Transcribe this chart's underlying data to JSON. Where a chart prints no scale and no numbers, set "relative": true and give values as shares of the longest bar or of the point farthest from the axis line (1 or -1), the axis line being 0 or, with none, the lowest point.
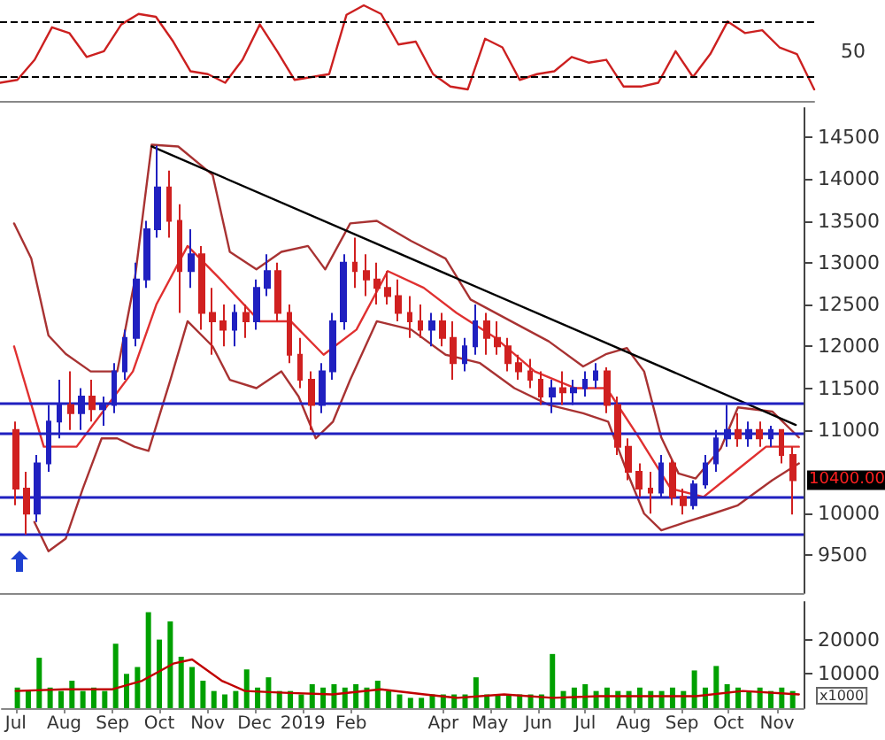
{
  "chart_data": [
    {
      "type": "line",
      "relative": true,
      "color": "#cc2020",
      "tick_labels": false,
      "categories": [
        null,
        null,
        null,
        null,
        null,
        null,
        null,
        null,
        null,
        null,
        null,
        null,
        null,
        null,
        null,
        null,
        null,
        null,
        null,
        null,
        null,
        null,
        null,
        null,
        null,
        null,
        null,
        null,
        null,
        null,
        null,
        null,
        null,
        null,
        null,
        null,
        null,
        null,
        null,
        null,
        null,
        null,
        null,
        null,
        null,
        null,
        null,
        null
      ],
      "values": [
        0.19,
        0.22,
        0.43,
        0.77,
        0.71,
        0.46,
        0.52,
        0.8,
        0.91,
        0.88,
        0.62,
        0.31,
        0.28,
        0.19,
        0.43,
        0.8,
        0.52,
        0.22,
        0.25,
        0.28,
        0.9,
        1.0,
        0.91,
        0.59,
        0.62,
        0.28,
        0.15,
        0.12,
        0.65,
        0.56,
        0.22,
        0.28,
        0.31,
        0.46,
        0.4,
        0.43,
        0.15,
        0.15,
        0.19,
        0.52,
        0.25,
        0.49,
        0.83,
        0.71,
        0.74,
        0.56,
        0.49,
        0.12
      ],
      "ref_lines": [
        {
          "axis": "y",
          "value": 0.83,
          "color": "#000000",
          "line_style": "dashed"
        },
        {
          "axis": "y",
          "value": 0.26,
          "color": "#000000",
          "line_style": "dashed"
        }
      ],
      "annotations": [
        "50"
      ]
    },
    {
      "type": "candlestick",
      "xlim": [
        "2018-06-22",
        "2019-11-18"
      ],
      "ylim": [
        9050,
        14850
      ],
      "yticks": [
        9500,
        10000,
        11000,
        11500,
        12000,
        12500,
        13000,
        13500,
        14000,
        14500
      ],
      "tick_labels": "y",
      "x": [
        "2018-07-02",
        "2018-07-09",
        "2018-07-16",
        "2018-07-23",
        "2018-07-30",
        "2018-08-06",
        "2018-08-13",
        "2018-08-20",
        "2018-08-27",
        "2018-09-03",
        "2018-09-10",
        "2018-09-17",
        "2018-09-24",
        "2018-10-01",
        "2018-10-08",
        "2018-10-15",
        "2018-10-22",
        "2018-10-29",
        "2018-11-05",
        "2018-11-12",
        "2018-11-19",
        "2018-11-26",
        "2018-12-03",
        "2018-12-10",
        "2018-12-17",
        "2018-12-24",
        "2018-12-31",
        "2019-01-07",
        "2019-01-14",
        "2019-01-21",
        "2019-01-28",
        "2019-02-04",
        "2019-02-11",
        "2019-02-18",
        "2019-02-25",
        "2019-03-04",
        "2019-03-11",
        "2019-03-18",
        "2019-03-25",
        "2019-04-01",
        "2019-04-08",
        "2019-04-15",
        "2019-04-22",
        "2019-04-29",
        "2019-05-06",
        "2019-05-13",
        "2019-05-20",
        "2019-05-27",
        "2019-06-03",
        "2019-06-10",
        "2019-06-17",
        "2019-06-24",
        "2019-07-01",
        "2019-07-08",
        "2019-07-15",
        "2019-07-22",
        "2019-07-29",
        "2019-08-05",
        "2019-08-12",
        "2019-08-19",
        "2019-08-26",
        "2019-09-02",
        "2019-09-09",
        "2019-09-16",
        "2019-09-23",
        "2019-09-30",
        "2019-10-07",
        "2019-10-14",
        "2019-10-21",
        "2019-10-28",
        "2019-11-04",
        "2019-11-11"
      ],
      "ohlc": [
        [
          11000,
          11100,
          10100,
          10300
        ],
        [
          10300,
          10500,
          9750,
          10000
        ],
        [
          10000,
          10700,
          9900,
          10600
        ],
        [
          10600,
          11300,
          10500,
          11100
        ],
        [
          11100,
          11600,
          10900,
          11300
        ],
        [
          11300,
          11700,
          11000,
          11200
        ],
        [
          11200,
          11500,
          11000,
          11400
        ],
        [
          11400,
          11600,
          11100,
          11250
        ],
        [
          11250,
          11400,
          11050,
          11300
        ],
        [
          11300,
          11800,
          11200,
          11700
        ],
        [
          11700,
          12200,
          11600,
          12100
        ],
        [
          12100,
          13000,
          12000,
          12800
        ],
        [
          12800,
          13500,
          12700,
          13400
        ],
        [
          13400,
          14400,
          13300,
          13900
        ],
        [
          13900,
          14100,
          13300,
          13500
        ],
        [
          13500,
          13700,
          12400,
          12900
        ],
        [
          12900,
          13400,
          12700,
          13100
        ],
        [
          13100,
          13200,
          12200,
          12400
        ],
        [
          12400,
          12700,
          11900,
          12300
        ],
        [
          12300,
          12500,
          12000,
          12200
        ],
        [
          12200,
          12500,
          12000,
          12400
        ],
        [
          12400,
          12500,
          12100,
          12300
        ],
        [
          12300,
          12800,
          12200,
          12700
        ],
        [
          12700,
          13100,
          12600,
          12900
        ],
        [
          12900,
          13000,
          12300,
          12400
        ],
        [
          12400,
          12500,
          11800,
          11900
        ],
        [
          11900,
          12100,
          11500,
          11600
        ],
        [
          11600,
          11700,
          11000,
          11300
        ],
        [
          11300,
          11800,
          11200,
          11700
        ],
        [
          11700,
          12400,
          11600,
          12300
        ],
        [
          12300,
          13100,
          12200,
          13000
        ],
        [
          13000,
          13300,
          12700,
          12900
        ],
        [
          12900,
          13100,
          12600,
          12800
        ],
        [
          12800,
          13000,
          12500,
          12700
        ],
        [
          12700,
          12900,
          12500,
          12600
        ],
        [
          12600,
          12800,
          12300,
          12400
        ],
        [
          12400,
          12600,
          12100,
          12300
        ],
        [
          12300,
          12500,
          12100,
          12200
        ],
        [
          12200,
          12400,
          12000,
          12300
        ],
        [
          12300,
          12400,
          12000,
          12100
        ],
        [
          12100,
          12300,
          11600,
          11800
        ],
        [
          11800,
          12100,
          11700,
          12000
        ],
        [
          12000,
          12500,
          11900,
          12300
        ],
        [
          12300,
          12400,
          11900,
          12100
        ],
        [
          12100,
          12300,
          11900,
          12000
        ],
        [
          12000,
          12100,
          11700,
          11800
        ],
        [
          11800,
          11900,
          11600,
          11700
        ],
        [
          11700,
          11850,
          11500,
          11600
        ],
        [
          11600,
          11700,
          11300,
          11400
        ],
        [
          11400,
          11600,
          11200,
          11500
        ],
        [
          11500,
          11700,
          11300,
          11450
        ],
        [
          11450,
          11600,
          11300,
          11500
        ],
        [
          11500,
          11700,
          11400,
          11600
        ],
        [
          11600,
          11800,
          11500,
          11700
        ],
        [
          11700,
          11750,
          11200,
          11300
        ],
        [
          11300,
          11400,
          10700,
          10800
        ],
        [
          10800,
          10900,
          10400,
          10500
        ],
        [
          10500,
          10600,
          10200,
          10300
        ],
        [
          10300,
          10500,
          10000,
          10250
        ],
        [
          10250,
          10700,
          10200,
          10600
        ],
        [
          10600,
          10650,
          10100,
          10200
        ],
        [
          10200,
          10300,
          9990,
          10100
        ],
        [
          10100,
          10400,
          10050,
          10350
        ],
        [
          10350,
          10700,
          10300,
          10600
        ],
        [
          10600,
          11000,
          10500,
          10900
        ],
        [
          10900,
          11300,
          10800,
          11000
        ],
        [
          11000,
          11200,
          10800,
          10900
        ],
        [
          10900,
          11100,
          10800,
          11000
        ],
        [
          11000,
          11100,
          10800,
          10900
        ],
        [
          10900,
          11050,
          10800,
          11000
        ],
        [
          11000,
          11000,
          10600,
          10700
        ],
        [
          10700,
          10800,
          9990,
          10400
        ]
      ],
      "series": [
        {
          "type": "line",
          "color": "#a83232",
          "x": [
            "2018-07-01",
            "2018-07-12",
            "2018-07-23",
            "2018-08-03",
            "2018-08-19",
            "2018-09-05",
            "2018-09-16",
            "2018-09-27",
            "2018-10-14",
            "2018-11-05",
            "2018-11-16",
            "2018-12-03",
            "2018-12-19",
            "2019-01-05",
            "2019-01-16",
            "2019-02-01",
            "2019-02-18",
            "2019-03-12",
            "2019-04-03",
            "2019-04-19",
            "2019-05-17",
            "2019-06-08",
            "2019-06-30",
            "2019-07-15",
            "2019-07-28",
            "2019-08-08",
            "2019-08-19",
            "2019-08-30",
            "2019-09-10",
            "2019-09-26",
            "2019-10-07",
            "2019-10-29",
            "2019-11-15"
          ],
          "values": [
            13470,
            13050,
            12130,
            11910,
            11700,
            11700,
            12770,
            14410,
            14390,
            14050,
            13130,
            12920,
            13130,
            13200,
            12920,
            13470,
            13500,
            13260,
            13050,
            12560,
            12280,
            12060,
            11760,
            11910,
            11980,
            11700,
            10910,
            10480,
            10420,
            10780,
            11270,
            11220,
            10910
          ]
        },
        {
          "type": "line",
          "color": "#e03030",
          "x": [
            "2018-07-01",
            "2018-07-20",
            "2018-08-10",
            "2018-08-30",
            "2018-09-15",
            "2018-09-30",
            "2018-10-20",
            "2018-11-10",
            "2018-12-05",
            "2018-12-25",
            "2019-01-15",
            "2019-02-05",
            "2019-02-25",
            "2019-03-20",
            "2019-04-10",
            "2019-05-05",
            "2019-05-30",
            "2019-06-25",
            "2019-07-15",
            "2019-08-05",
            "2019-08-25",
            "2019-09-15",
            "2019-10-05",
            "2019-10-25",
            "2019-11-15"
          ],
          "values": [
            12000,
            10800,
            10800,
            11300,
            11700,
            12500,
            13200,
            12800,
            12300,
            12300,
            11900,
            12200,
            12900,
            12700,
            12400,
            12100,
            11700,
            11500,
            11500,
            10900,
            10300,
            10200,
            10500,
            10800,
            10800
          ]
        },
        {
          "type": "line",
          "color": "#a83232",
          "x": [
            "2018-07-14",
            "2018-07-23",
            "2018-08-03",
            "2018-08-14",
            "2018-08-26",
            "2018-09-05",
            "2018-09-16",
            "2018-09-25",
            "2018-10-09",
            "2018-10-20",
            "2018-11-05",
            "2018-11-16",
            "2018-12-03",
            "2018-12-19",
            "2018-12-30",
            "2019-01-10",
            "2019-01-21",
            "2019-02-01",
            "2019-02-18",
            "2019-03-12",
            "2019-04-03",
            "2019-04-25",
            "2019-05-17",
            "2019-06-08",
            "2019-06-30",
            "2019-07-16",
            "2019-07-28",
            "2019-08-08",
            "2019-08-19",
            "2019-09-04",
            "2019-09-21",
            "2019-10-07",
            "2019-10-29",
            "2019-11-15"
          ],
          "values": [
            9900,
            9550,
            9700,
            10300,
            10900,
            10900,
            10800,
            10750,
            11600,
            12300,
            12000,
            11600,
            11500,
            11700,
            11400,
            10900,
            11100,
            11600,
            12300,
            12200,
            11900,
            11800,
            11500,
            11300,
            11200,
            11100,
            10500,
            10000,
            9800,
            9900,
            10000,
            10100,
            10400,
            10600
          ]
        },
        {
          "type": "line",
          "color": "#000000",
          "x": [
            "2018-09-27",
            "2019-11-13"
          ],
          "values": [
            14390,
            11060
          ]
        }
      ],
      "ref_lines": [
        {
          "axis": "y",
          "value": 11330,
          "color": "#2020c0"
        },
        {
          "axis": "y",
          "value": 10970,
          "color": "#2020c0"
        },
        {
          "axis": "y",
          "value": 10200,
          "color": "#2020c0"
        },
        {
          "axis": "y",
          "value": 9750,
          "color": "#2020c0"
        }
      ],
      "annotations": [
        "10400.00"
      ]
    },
    {
      "type": "bar",
      "color": "#00a000",
      "xlim": [
        "2018-06-22",
        "2019-11-18"
      ],
      "ylim": [
        0,
        31000
      ],
      "yticks": [
        10000,
        20000
      ],
      "ylabel": "x1000",
      "xticks": [
        {
          "value": "2018-07-01",
          "label": "Jul"
        },
        {
          "value": "2018-08-01",
          "label": "Aug"
        },
        {
          "value": "2018-09-01",
          "label": "Sep"
        },
        {
          "value": "2018-10-01",
          "label": "Oct"
        },
        {
          "value": "2018-11-01",
          "label": "Nov"
        },
        {
          "value": "2018-12-01",
          "label": "Dec"
        },
        {
          "value": "2019-01-01",
          "label": "2019"
        },
        {
          "value": "2019-02-01",
          "label": "Feb"
        },
        {
          "value": "2019-04-01",
          "label": "Apr"
        },
        {
          "value": "2019-05-01",
          "label": "May"
        },
        {
          "value": "2019-06-01",
          "label": "Jun"
        },
        {
          "value": "2019-07-01",
          "label": "Jul"
        },
        {
          "value": "2019-08-01",
          "label": "Aug"
        },
        {
          "value": "2019-09-01",
          "label": "Sep"
        },
        {
          "value": "2019-10-01",
          "label": "Oct"
        },
        {
          "value": "2019-11-01",
          "label": "Nov"
        }
      ],
      "x": [
        "2018-07-02",
        "2018-07-09",
        "2018-07-16",
        "2018-07-23",
        "2018-07-30",
        "2018-08-06",
        "2018-08-13",
        "2018-08-20",
        "2018-08-27",
        "2018-09-03",
        "2018-09-10",
        "2018-09-17",
        "2018-09-24",
        "2018-10-01",
        "2018-10-08",
        "2018-10-15",
        "2018-10-22",
        "2018-10-29",
        "2018-11-05",
        "2018-11-12",
        "2018-11-19",
        "2018-11-26",
        "2018-12-03",
        "2018-12-10",
        "2018-12-17",
        "2018-12-24",
        "2018-12-31",
        "2019-01-07",
        "2019-01-14",
        "2019-01-21",
        "2019-01-28",
        "2019-02-04",
        "2019-02-11",
        "2019-02-18",
        "2019-02-25",
        "2019-03-04",
        "2019-03-11",
        "2019-03-18",
        "2019-03-25",
        "2019-04-01",
        "2019-04-08",
        "2019-04-15",
        "2019-04-22",
        "2019-04-29",
        "2019-05-06",
        "2019-05-13",
        "2019-05-20",
        "2019-05-27",
        "2019-06-03",
        "2019-06-10",
        "2019-06-17",
        "2019-06-24",
        "2019-07-01",
        "2019-07-08",
        "2019-07-15",
        "2019-07-22",
        "2019-07-29",
        "2019-08-05",
        "2019-08-12",
        "2019-08-19",
        "2019-08-26",
        "2019-09-02",
        "2019-09-09",
        "2019-09-16",
        "2019-09-23",
        "2019-09-30",
        "2019-10-07",
        "2019-10-14",
        "2019-10-21",
        "2019-10-28",
        "2019-11-04",
        "2019-11-11"
      ],
      "values": [
        6000,
        5000,
        14700,
        6000,
        5000,
        8000,
        5000,
        6000,
        5000,
        18800,
        10000,
        12000,
        28000,
        20000,
        25300,
        15000,
        12000,
        8000,
        5000,
        4000,
        5000,
        11300,
        6000,
        9000,
        5000,
        5000,
        4000,
        7000,
        6000,
        7000,
        6000,
        7000,
        6000,
        8000,
        5000,
        4000,
        3000,
        3000,
        4000,
        4000,
        4000,
        4000,
        9000,
        4000,
        4000,
        4000,
        4000,
        4000,
        4000,
        15800,
        5000,
        6000,
        7000,
        5000,
        6000,
        5000,
        5000,
        6000,
        5000,
        5000,
        6000,
        5000,
        11000,
        6000,
        12300,
        7000,
        6000,
        5000,
        6000,
        5000,
        6000,
        5000
      ],
      "series": [
        {
          "type": "line",
          "color": "#c00000",
          "x": [
            "2018-07-01",
            "2018-08-01",
            "2018-09-01",
            "2018-09-20",
            "2018-10-10",
            "2018-10-22",
            "2018-11-10",
            "2018-11-25",
            "2018-12-20",
            "2019-01-20",
            "2019-02-20",
            "2019-03-20",
            "2019-04-10",
            "2019-05-10",
            "2019-06-10",
            "2019-07-10",
            "2019-08-10",
            "2019-09-10",
            "2019-10-10",
            "2019-11-15"
          ],
          "values": [
            5000,
            5500,
            5500,
            8000,
            13000,
            14200,
            8000,
            5000,
            4500,
            4000,
            5500,
            4000,
            3000,
            4000,
            3000,
            3500,
            3500,
            3500,
            5000,
            4000
          ]
        }
      ]
    }
  ]
}
